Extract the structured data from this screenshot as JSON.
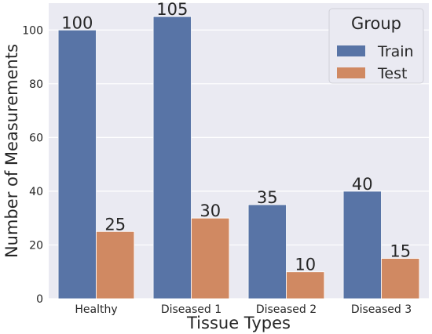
{
  "chart_data": {
    "type": "bar",
    "categories": [
      "Healthy",
      "Diseased 1",
      "Diseased 2",
      "Diseased 3"
    ],
    "series": [
      {
        "name": "Train",
        "values": [
          100,
          105,
          35,
          40
        ],
        "color": "#5874a6"
      },
      {
        "name": "Test",
        "values": [
          25,
          30,
          10,
          15
        ],
        "color": "#d08962"
      }
    ],
    "title": "",
    "xlabel": "Tissue Types",
    "ylabel": "Number of Measurements",
    "ylim": [
      0,
      110
    ],
    "yticks": [
      0,
      20,
      40,
      60,
      80,
      100
    ],
    "grid": true,
    "legend": {
      "title": "Group",
      "placement": "top-right"
    },
    "background_color": "#eaeaf2"
  }
}
